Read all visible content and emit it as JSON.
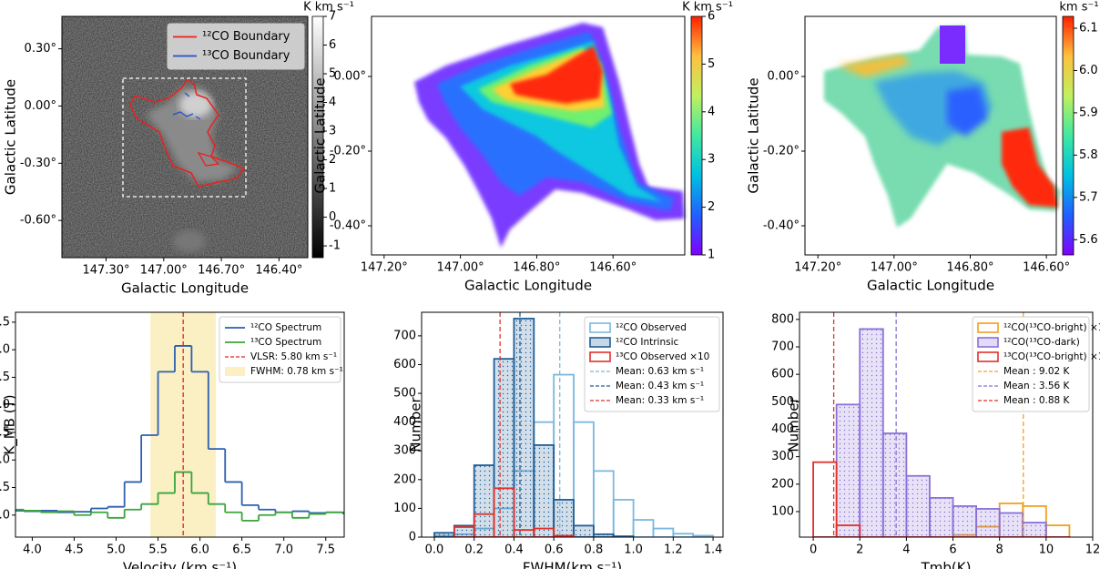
{
  "chart_data": [
    {
      "type": "image",
      "xlabel": "Galactic Longitude",
      "ylabel": "Galactic Latitude",
      "colorbar_label": "K km s⁻¹",
      "colormap": "gray",
      "xlim": [
        147.53,
        146.25
      ],
      "ylim": [
        -0.795,
        0.47
      ],
      "clim": [
        -1.41,
        7.0
      ],
      "xticks": [
        {
          "value": 147.3,
          "label": "147.30°"
        },
        {
          "value": 147.0,
          "label": "147.00°"
        },
        {
          "value": 146.7,
          "label": "146.70°"
        },
        {
          "value": 146.4,
          "label": "146.40°"
        }
      ],
      "yticks": [
        {
          "value": 0.3,
          "label": "0.30°"
        },
        {
          "value": 0.0,
          "label": "0.00°"
        },
        {
          "value": -0.3,
          "label": "-0.30°"
        },
        {
          "value": -0.6,
          "label": "-0.60°"
        }
      ],
      "cticks": [
        -1,
        0,
        1,
        2,
        3,
        4,
        5,
        6,
        7
      ],
      "series": [
        {
          "name": "¹²CO Boundary",
          "color": "#e8221f"
        },
        {
          "name": "¹³CO Boundary",
          "color": "#2151c9"
        }
      ],
      "legend_loc": "upper right"
    },
    {
      "type": "image",
      "xlabel": "Galactic Longitude",
      "ylabel": "Galactic Latitude",
      "colorbar_label": "K km s⁻¹",
      "colormap": "rainbow",
      "xlim": [
        147.233,
        146.412
      ],
      "ylim": [
        -0.478,
        0.161
      ],
      "clim": [
        1,
        6
      ],
      "xticks": [
        {
          "value": 147.2,
          "label": "147.20°"
        },
        {
          "value": 147.0,
          "label": "147.00°"
        },
        {
          "value": 146.8,
          "label": "146.80°"
        },
        {
          "value": 146.6,
          "label": "146.60°"
        }
      ],
      "yticks": [
        {
          "value": 0.0,
          "label": "0.00°"
        },
        {
          "value": -0.2,
          "label": "-0.20°"
        },
        {
          "value": -0.4,
          "label": "-0.40°"
        }
      ],
      "cticks": [
        1,
        2,
        3,
        4,
        5,
        6
      ]
    },
    {
      "type": "image",
      "xlabel": "Galactic Longitude",
      "ylabel": "Galactic Latitude",
      "colorbar_label": "km s⁻¹",
      "colormap": "rainbow",
      "xlim": [
        147.234,
        146.574
      ],
      "ylim": [
        -0.478,
        0.161
      ],
      "clim": [
        5.564,
        6.128
      ],
      "xticks": [
        {
          "value": 147.2,
          "label": "147.20°"
        },
        {
          "value": 147.0,
          "label": "147.00°"
        },
        {
          "value": 146.8,
          "label": "146.80°"
        },
        {
          "value": 146.6,
          "label": "146.60°"
        }
      ],
      "yticks": [
        {
          "value": 0.0,
          "label": "0.00°"
        },
        {
          "value": -0.2,
          "label": "-0.20°"
        },
        {
          "value": -0.4,
          "label": "-0.40°"
        }
      ],
      "cticks": [
        5.6,
        5.7,
        5.8,
        5.9,
        {
          "value": 6.0,
          "label": "6.0"
        },
        6.1
      ]
    },
    {
      "type": "step",
      "xlabel": "Velocity (km s⁻¹)",
      "ylabel": "K_MB (T)",
      "xlim": [
        3.8,
        7.72
      ],
      "ylim": [
        -0.4,
        3.68
      ],
      "xticks": [
        {
          "value": 4,
          "label": "4.0"
        },
        4.5,
        {
          "value": 5,
          "label": "5.0"
        },
        5.5,
        {
          "value": 6,
          "label": "6.0"
        },
        6.5,
        {
          "value": 7,
          "label": "7.0"
        },
        7.5
      ],
      "yticks": [
        {
          "value": 0,
          "label": "0.0"
        },
        0.5,
        {
          "value": 1,
          "label": "1.0"
        },
        1.5,
        {
          "value": 2,
          "label": "2.0"
        },
        2.5,
        {
          "value": 3,
          "label": "3.0"
        },
        3.5
      ],
      "x": [
        3.8,
        4.0,
        4.2,
        4.4,
        4.6,
        4.8,
        5.0,
        5.2,
        5.4,
        5.6,
        5.8,
        6.0,
        6.2,
        6.4,
        6.6,
        6.8,
        7.0,
        7.2,
        7.4,
        7.6,
        7.8
      ],
      "series": [
        {
          "name": "¹²CO Spectrum",
          "color": "#2d5fb0",
          "values": [
            0.08,
            0.07,
            0.08,
            0.05,
            0.06,
            0.12,
            0.15,
            0.6,
            1.45,
            2.6,
            3.07,
            2.6,
            1.2,
            0.6,
            0.18,
            0.1,
            0.05,
            0.07,
            0.04,
            0.05,
            0.03
          ]
        },
        {
          "name": "¹³CO Spectrum",
          "color": "#3aa43a",
          "values": [
            0.1,
            0.08,
            0.05,
            0.07,
            0.0,
            0.05,
            -0.05,
            0.1,
            0.2,
            0.4,
            0.78,
            0.4,
            0.2,
            0.05,
            -0.1,
            0.0,
            0.05,
            -0.05,
            0.02,
            0.05,
            0.05
          ]
        }
      ],
      "vlines": [
        {
          "name": "VLSR: 5.80 km s⁻¹",
          "value": 5.8,
          "color": "#e8221f"
        }
      ],
      "spans": [
        {
          "name": "FWHM: 0.78 km s⁻¹",
          "range": [
            5.41,
            6.19
          ],
          "color": "#fbefc4"
        }
      ],
      "legend_loc": "upper right"
    },
    {
      "type": "histogram",
      "xlabel": "FWHM(km s⁻¹)",
      "ylabel": "Number",
      "xlim": [
        -0.064,
        1.45
      ],
      "ylim": [
        0,
        782
      ],
      "xticks": [
        {
          "value": 0,
          "label": "0.0"
        },
        0.2,
        0.4,
        0.6,
        0.8,
        {
          "value": 1,
          "label": "1.0"
        },
        1.2,
        1.4
      ],
      "yticks": [
        0,
        100,
        200,
        300,
        400,
        500,
        600,
        700
      ],
      "bins": [
        0,
        0.1,
        0.2,
        0.3,
        0.4,
        0.5,
        0.6,
        0.7,
        0.8,
        0.9,
        1.0,
        1.1,
        1.2,
        1.3,
        1.4
      ],
      "series": [
        {
          "name": "¹²CO Observed",
          "color": "#7ab8e0",
          "hatch": false,
          "values": [
            5,
            10,
            30,
            100,
            230,
            400,
            565,
            400,
            230,
            130,
            60,
            30,
            12,
            5
          ]
        },
        {
          "name": "¹²CO Intrinsic",
          "color": "#1f5e96",
          "hatch": true,
          "values": [
            15,
            40,
            250,
            620,
            760,
            320,
            130,
            40,
            10,
            3,
            0,
            0,
            0,
            0
          ]
        },
        {
          "name": "¹³CO Observed ×10",
          "color": "#e0302a",
          "hatch": false,
          "values": [
            0,
            35,
            80,
            170,
            25,
            30,
            5,
            0,
            0,
            0,
            0,
            0,
            0,
            0
          ]
        }
      ],
      "vlines": [
        {
          "name": "Mean: 0.63 km s⁻¹",
          "value": 0.63,
          "color": "#7ab8e0"
        },
        {
          "name": "Mean: 0.43 km s⁻¹",
          "value": 0.43,
          "color": "#1f5e96"
        },
        {
          "name": "Mean: 0.33 km s⁻¹",
          "value": 0.33,
          "color": "#e0302a"
        }
      ],
      "legend_loc": "upper right"
    },
    {
      "type": "histogram",
      "xlabel": "Tmb(K)",
      "ylabel": "Number",
      "xlim": [
        -0.59,
        12
      ],
      "ylim": [
        7,
        826
      ],
      "xticks": [
        0,
        2,
        4,
        6,
        8,
        10,
        12
      ],
      "yticks": [
        100,
        200,
        300,
        400,
        500,
        600,
        700,
        800
      ],
      "bins": [
        0,
        1,
        2,
        3,
        4,
        5,
        6,
        7,
        8,
        9,
        10,
        11
      ],
      "series": [
        {
          "name": "¹²CO(¹³CO-bright) ×10",
          "color": "#f0a020",
          "hatch": false,
          "values": [
            0,
            0,
            0,
            0,
            0,
            0,
            15,
            45,
            130,
            120,
            50
          ]
        },
        {
          "name": "¹²CO(¹³CO-dark)",
          "color": "#8a70d8",
          "hatch": true,
          "values": [
            0,
            490,
            765,
            385,
            230,
            150,
            120,
            110,
            95,
            60,
            0
          ]
        },
        {
          "name": "¹³CO(¹³CO-bright) ×10",
          "color": "#e0302a",
          "hatch": false,
          "values": [
            280,
            50,
            0,
            0,
            0,
            0,
            0,
            0,
            0,
            0,
            0
          ]
        }
      ],
      "vlines": [
        {
          "name": "Mean : 9.02 K",
          "value": 9.02,
          "color": "#f0a020"
        },
        {
          "name": "Mean : 3.56 K",
          "value": 3.56,
          "color": "#8a70d8"
        },
        {
          "name": "Mean : 0.88 K",
          "value": 0.88,
          "color": "#e0302a"
        }
      ],
      "legend_loc": "upper right"
    }
  ]
}
